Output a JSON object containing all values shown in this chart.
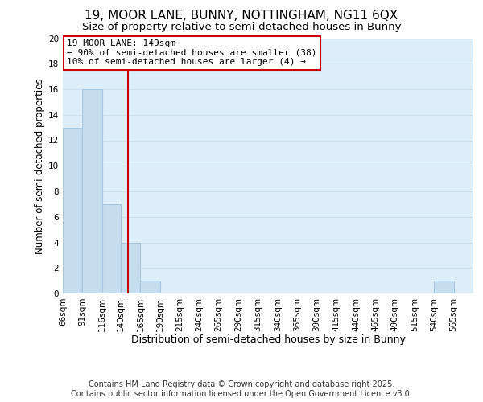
{
  "title": "19, MOOR LANE, BUNNY, NOTTINGHAM, NG11 6QX",
  "subtitle": "Size of property relative to semi-detached houses in Bunny",
  "xlabel": "Distribution of semi-detached houses by size in Bunny",
  "ylabel": "Number of semi-detached properties",
  "bin_labels": [
    "66sqm",
    "91sqm",
    "116sqm",
    "140sqm",
    "165sqm",
    "190sqm",
    "215sqm",
    "240sqm",
    "265sqm",
    "290sqm",
    "315sqm",
    "340sqm",
    "365sqm",
    "390sqm",
    "415sqm",
    "440sqm",
    "465sqm",
    "490sqm",
    "515sqm",
    "540sqm",
    "565sqm"
  ],
  "bin_edges": [
    66,
    91,
    116,
    140,
    165,
    190,
    215,
    240,
    265,
    290,
    315,
    340,
    365,
    390,
    415,
    440,
    465,
    490,
    515,
    540,
    565,
    590
  ],
  "bar_heights": [
    13,
    16,
    7,
    4,
    1,
    0,
    0,
    0,
    0,
    0,
    0,
    0,
    0,
    0,
    0,
    0,
    0,
    0,
    0,
    1,
    0
  ],
  "bar_color": "#c5ddef",
  "bar_edge_color": "#a8c8e0",
  "vline_x": 149,
  "vline_color": "#cc0000",
  "annotation_title": "19 MOOR LANE: 149sqm",
  "annotation_line1": "← 90% of semi-detached houses are smaller (38)",
  "annotation_line2": "10% of semi-detached houses are larger (4) →",
  "annotation_box_facecolor": "#ffffff",
  "annotation_box_edgecolor": "#cc0000",
  "ylim": [
    0,
    20
  ],
  "yticks": [
    0,
    2,
    4,
    6,
    8,
    10,
    12,
    14,
    16,
    18,
    20
  ],
  "grid_color": "#cce0ee",
  "bg_color": "#ddeef8",
  "footer_line1": "Contains HM Land Registry data © Crown copyright and database right 2025.",
  "footer_line2": "Contains public sector information licensed under the Open Government Licence v3.0.",
  "title_fontsize": 11,
  "subtitle_fontsize": 9.5,
  "xlabel_fontsize": 9,
  "ylabel_fontsize": 8.5,
  "tick_fontsize": 7.5,
  "annot_fontsize": 8,
  "footer_fontsize": 7
}
